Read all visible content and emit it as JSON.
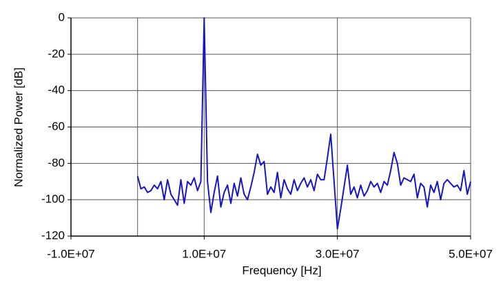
{
  "chart_data": {
    "type": "line",
    "x_label": "Frequency [Hz]",
    "y_label": "Normalized Power [dB]",
    "x": [
      0,
      500000,
      1000000,
      1500000,
      2000000,
      2500000,
      3000000,
      3500000,
      4000000,
      4500000,
      5000000,
      5500000,
      6000000,
      6500000,
      7000000,
      7500000,
      8000000,
      8500000,
      9000000,
      9500000,
      10000000,
      10500000,
      11000000,
      11500000,
      12000000,
      12500000,
      13000000,
      13500000,
      14000000,
      14500000,
      15000000,
      15500000,
      16000000,
      16500000,
      17000000,
      17500000,
      18000000,
      18500000,
      19000000,
      19500000,
      20000000,
      20500000,
      21000000,
      21500000,
      22000000,
      22500000,
      23000000,
      23500000,
      24000000,
      24500000,
      25000000,
      25500000,
      26000000,
      26500000,
      27000000,
      27500000,
      28000000,
      28500000,
      29000000,
      29500000,
      30000000,
      30500000,
      31000000,
      31500000,
      32000000,
      32500000,
      33000000,
      33500000,
      34000000,
      34500000,
      35000000,
      35500000,
      36000000,
      36500000,
      37000000,
      37500000,
      38000000,
      38500000,
      39000000,
      39500000,
      40000000,
      40500000,
      41000000,
      41500000,
      42000000,
      42500000,
      43000000,
      43500000,
      44000000,
      44500000,
      45000000,
      45500000,
      46000000,
      46500000,
      47000000,
      47500000,
      48000000,
      48500000,
      49000000,
      49500000,
      50000000
    ],
    "series": [
      {
        "name": "Normalized Power",
        "color": "#1414c8",
        "values": [
          -87,
          -94,
          -93,
          -96,
          -95,
          -92,
          -94,
          -90,
          -100,
          -89,
          -97,
          -100,
          -103,
          -89,
          -102,
          -90,
          -92,
          -88,
          -95,
          -90,
          0,
          -90,
          -107,
          -96,
          -87,
          -104,
          -96,
          -92,
          -102,
          -91,
          -98,
          -88,
          -97,
          -100,
          -93,
          -85,
          -75,
          -81,
          -79,
          -97,
          -93,
          -96,
          -85,
          -99,
          -89,
          -94,
          -97,
          -89,
          -95,
          -91,
          -88,
          -93,
          -89,
          -95,
          -86,
          -89,
          -89,
          -77,
          -64,
          -90,
          -116,
          -105,
          -93,
          -81,
          -97,
          -93,
          -99,
          -92,
          -98,
          -95,
          -90,
          -93,
          -91,
          -96,
          -90,
          -92,
          -84,
          -74,
          -80,
          -92,
          -88,
          -89,
          -90,
          -86,
          -99,
          -91,
          -93,
          -104,
          -92,
          -96,
          -90,
          -100,
          -91,
          -89,
          -91,
          -93,
          -92,
          -95,
          -84,
          -97,
          -90
        ]
      }
    ],
    "xlim": [
      -10000000,
      50000000
    ],
    "xticks": [
      {
        "value": -10000000,
        "label": "-1.0E+07"
      },
      {
        "value": 10000000,
        "label": "1.0E+07"
      },
      {
        "value": 30000000,
        "label": "3.0E+07"
      },
      {
        "value": 50000000,
        "label": "5.0E+07"
      }
    ],
    "ylim": [
      -120,
      0
    ],
    "yticks": [
      0,
      -20,
      -40,
      -60,
      -80,
      -100,
      -120
    ],
    "grid": true
  }
}
